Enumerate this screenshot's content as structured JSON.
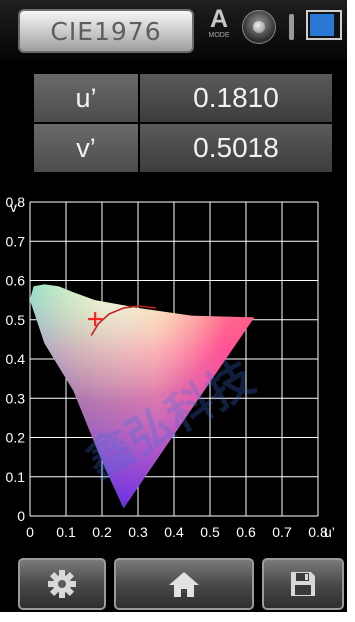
{
  "header": {
    "title": "CIE1976",
    "mode_letter": "A",
    "mode_label": "MODE",
    "knob_icon": "dial-knob-icon",
    "battery_level": 0.8
  },
  "readouts": {
    "u_label": "u’",
    "u_value": "0.1810",
    "v_label": "v’",
    "v_value": "0.5018"
  },
  "chart_data": {
    "type": "scatter",
    "xlabel": "u’",
    "ylabel": "v’",
    "xlim": [
      0,
      0.8
    ],
    "ylim": [
      0,
      0.8
    ],
    "xticks": [
      "0",
      "0.1",
      "0.2",
      "0.3",
      "0.4",
      "0.5",
      "0.6",
      "0.7",
      "0.8"
    ],
    "yticks": [
      "0",
      "0.1",
      "0.2",
      "0.3",
      "0.4",
      "0.5",
      "0.6",
      "0.7",
      "0.8"
    ],
    "grid": true,
    "gamut_locus": [
      [
        0.26,
        0.02
      ],
      [
        0.2,
        0.14
      ],
      [
        0.12,
        0.32
      ],
      [
        0.04,
        0.44
      ],
      [
        0.0,
        0.55
      ],
      [
        0.01,
        0.585
      ],
      [
        0.04,
        0.59
      ],
      [
        0.08,
        0.585
      ],
      [
        0.12,
        0.57
      ],
      [
        0.18,
        0.55
      ],
      [
        0.3,
        0.53
      ],
      [
        0.45,
        0.51
      ],
      [
        0.623,
        0.506
      ]
    ],
    "planckian_locus": [
      [
        0.17,
        0.46
      ],
      [
        0.19,
        0.49
      ],
      [
        0.22,
        0.515
      ],
      [
        0.26,
        0.53
      ],
      [
        0.3,
        0.535
      ],
      [
        0.35,
        0.53
      ]
    ],
    "measured_point": {
      "u": 0.181,
      "v": 0.5018,
      "marker": "cross",
      "color": "#ff2020"
    }
  },
  "toolbar": {
    "settings_icon": "gear-icon",
    "home_icon": "home-icon",
    "save_icon": "save-icon"
  },
  "watermark": {
    "text": "鑫弘科技"
  },
  "colors": {
    "grid": "#ffffff",
    "locus_line": "#c02020",
    "battery": "#2a78d6"
  }
}
